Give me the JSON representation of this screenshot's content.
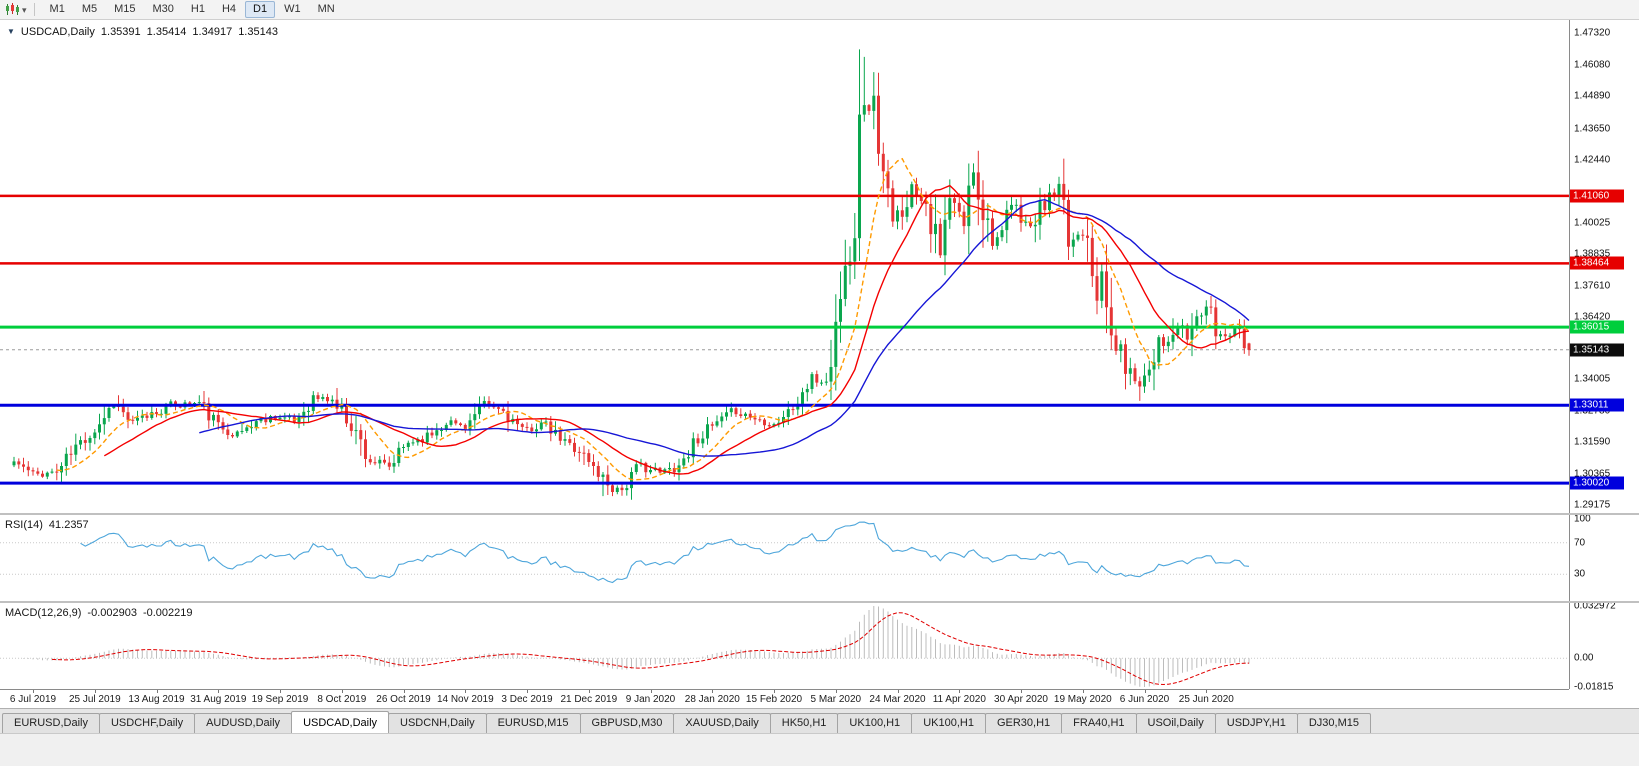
{
  "toolbar": {
    "timeframes": [
      "M1",
      "M5",
      "M15",
      "M30",
      "H1",
      "H4",
      "D1",
      "W1",
      "MN"
    ],
    "active_timeframe": "D1"
  },
  "chart_header": {
    "symbol": "USDCAD,Daily",
    "open": "1.35391",
    "high": "1.35414",
    "low": "1.34917",
    "close": "1.35143"
  },
  "chart_data": {
    "type": "candlestick",
    "symbol": "USDCAD",
    "timeframe": "Daily",
    "x_axis": {
      "labels": [
        "6 Jul 2019",
        "25 Jul 2019",
        "13 Aug 2019",
        "31 Aug 2019",
        "19 Sep 2019",
        "8 Oct 2019",
        "26 Oct 2019",
        "14 Nov 2019",
        "3 Dec 2019",
        "21 Dec 2019",
        "9 Jan 2020",
        "28 Jan 2020",
        "15 Feb 2020",
        "5 Mar 2020",
        "24 Mar 2020",
        "11 Apr 2020",
        "30 Apr 2020",
        "19 May 2020",
        "6 Jun 2020",
        "25 Jun 2020"
      ],
      "first_label_index": 4,
      "candles_per_label": 13
    },
    "y_axis": {
      "price_top": 1.4782,
      "price_bottom": 1.2887,
      "ticks": [
        "1.47320",
        "1.46080",
        "1.44890",
        "1.43650",
        "1.42440",
        "1.40025",
        "1.38835",
        "1.37610",
        "1.36420",
        "1.34005",
        "1.32780",
        "1.31590",
        "1.30365",
        "1.29175"
      ]
    },
    "levels": [
      {
        "value": "1.41060",
        "price": 1.4106,
        "color": "#e60000",
        "width": 2.5,
        "kind": "resistance"
      },
      {
        "value": "1.38464",
        "price": 1.38464,
        "color": "#e60000",
        "width": 2.5,
        "kind": "resistance"
      },
      {
        "value": "1.36015",
        "price": 1.36015,
        "color": "#00ce3c",
        "width": 3,
        "kind": "support"
      },
      {
        "value": "1.33011",
        "price": 1.33011,
        "color": "#0000dd",
        "width": 3,
        "kind": "support"
      },
      {
        "value": "1.30020",
        "price": 1.3002,
        "color": "#0000dd",
        "width": 3,
        "kind": "support"
      }
    ],
    "current_price": {
      "value": "1.35143",
      "price": 1.35143,
      "chip_color": "#0c0c0c",
      "line_color": "#9b9b9b"
    },
    "candles": {
      "count": 261,
      "seed": 11,
      "up_color": "#0aa64e",
      "down_color": "#e53535",
      "final_ohlc": [
        1.35391,
        1.35414,
        1.34917,
        1.35143
      ],
      "spikes": [
        [
          124,
          "low",
          1.2952
        ],
        [
          178,
          "high",
          1.4669
        ],
        [
          179,
          "high",
          1.464
        ],
        [
          237,
          "low",
          1.3318
        ]
      ],
      "anchors": [
        [
          0,
          1.3085
        ],
        [
          4,
          1.3035
        ],
        [
          9,
          1.3045
        ],
        [
          13,
          1.314
        ],
        [
          17,
          1.321
        ],
        [
          21,
          1.331
        ],
        [
          25,
          1.323
        ],
        [
          29,
          1.327
        ],
        [
          33,
          1.33
        ],
        [
          39,
          1.331
        ],
        [
          43,
          1.322
        ],
        [
          47,
          1.319
        ],
        [
          51,
          1.324
        ],
        [
          55,
          1.326
        ],
        [
          59,
          1.324
        ],
        [
          63,
          1.333
        ],
        [
          67,
          1.332
        ],
        [
          71,
          1.323
        ],
        [
          75,
          1.309
        ],
        [
          79,
          1.306
        ],
        [
          83,
          1.316
        ],
        [
          87,
          1.318
        ],
        [
          91,
          1.324
        ],
        [
          95,
          1.322
        ],
        [
          99,
          1.33
        ],
        [
          103,
          1.328
        ],
        [
          107,
          1.32
        ],
        [
          111,
          1.323
        ],
        [
          115,
          1.317
        ],
        [
          119,
          1.313
        ],
        [
          122,
          1.306
        ],
        [
          126,
          1.2985
        ],
        [
          128,
          1.298
        ],
        [
          132,
          1.307
        ],
        [
          136,
          1.304
        ],
        [
          140,
          1.307
        ],
        [
          144,
          1.318
        ],
        [
          148,
          1.323
        ],
        [
          152,
          1.328
        ],
        [
          156,
          1.325
        ],
        [
          160,
          1.323
        ],
        [
          164,
          1.329
        ],
        [
          168,
          1.34
        ],
        [
          170,
          1.339
        ],
        [
          172,
          1.342
        ],
        [
          173,
          1.365
        ],
        [
          174,
          1.37
        ],
        [
          176,
          1.393
        ],
        [
          177,
          1.4
        ],
        [
          178,
          1.447
        ],
        [
          179,
          1.444
        ],
        [
          181,
          1.445
        ],
        [
          183,
          1.418
        ],
        [
          185,
          1.399
        ],
        [
          187,
          1.406
        ],
        [
          189,
          1.414
        ],
        [
          192,
          1.409
        ],
        [
          195,
          1.387
        ],
        [
          197,
          1.409
        ],
        [
          200,
          1.4
        ],
        [
          202,
          1.421
        ],
        [
          204,
          1.406
        ],
        [
          206,
          1.395
        ],
        [
          208,
          1.394
        ],
        [
          210,
          1.407
        ],
        [
          212,
          1.403
        ],
        [
          214,
          1.398
        ],
        [
          216,
          1.405
        ],
        [
          218,
          1.41
        ],
        [
          220,
          1.411
        ],
        [
          222,
          1.392
        ],
        [
          224,
          1.396
        ],
        [
          226,
          1.398
        ],
        [
          228,
          1.374
        ],
        [
          229,
          1.378
        ],
        [
          231,
          1.356
        ],
        [
          233,
          1.35
        ],
        [
          235,
          1.342
        ],
        [
          237,
          1.339
        ],
        [
          239,
          1.345
        ],
        [
          241,
          1.357
        ],
        [
          243,
          1.353
        ],
        [
          245,
          1.36
        ],
        [
          247,
          1.356
        ],
        [
          249,
          1.364
        ],
        [
          251,
          1.368
        ],
        [
          253,
          1.358
        ],
        [
          255,
          1.357
        ],
        [
          257,
          1.361
        ],
        [
          259,
          1.356
        ],
        [
          260,
          1.35143
        ]
      ]
    },
    "moving_averages": [
      {
        "period": 10,
        "color": "#ff9a00",
        "dash": "5,3"
      },
      {
        "period": 20,
        "color": "#f40000",
        "dash": ""
      },
      {
        "period": 40,
        "color": "#1616d6",
        "dash": ""
      }
    ],
    "indicators": {
      "rsi": {
        "label": "RSI(14)",
        "value": "41.2357",
        "period": 14,
        "line_color": "#4ea6db",
        "axis_labels": [
          [
            "100",
            100
          ],
          [
            "70",
            70
          ],
          [
            "30",
            30
          ]
        ],
        "dotted_levels": [
          70,
          30
        ]
      },
      "macd": {
        "label": "MACD(12,26,9)",
        "main_value": "-0.002903",
        "signal_value": "-0.002219",
        "fast": 12,
        "slow": 26,
        "signal": 9,
        "hist_color": "#bcbcbc",
        "signal_color": "#e00000",
        "axis_labels": [
          [
            "0.032972",
            0.032972
          ],
          [
            "0.00",
            0
          ],
          [
            "-0.01815",
            -0.018154
          ]
        ],
        "range": [
          -0.018154,
          0.032972
        ]
      }
    }
  },
  "tabs": {
    "items": [
      "EURUSD,Daily",
      "USDCHF,Daily",
      "AUDUSD,Daily",
      "USDCAD,Daily",
      "USDCNH,Daily",
      "EURUSD,M15",
      "GBPUSD,M30",
      "XAUUSD,Daily",
      "HK50,H1",
      "UK100,H1",
      "UK100,H1",
      "GER30,H1",
      "FRA40,H1",
      "USOil,Daily",
      "USDJPY,H1",
      "DJ30,M15"
    ],
    "active_index": 3
  }
}
